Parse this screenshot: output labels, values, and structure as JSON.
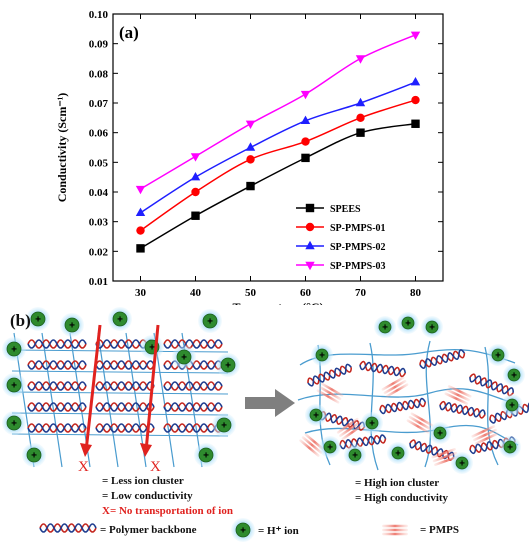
{
  "chart_data": {
    "type": "line",
    "panel_label": "(a)",
    "xlabel": "Temperature (°C)",
    "ylabel": "Conductivity (Scm⁻¹)",
    "x": [
      30,
      40,
      50,
      60,
      70,
      80
    ],
    "xlim": [
      25,
      85
    ],
    "ylim": [
      0.01,
      0.1
    ],
    "x_ticks": [
      "30",
      "40",
      "50",
      "60",
      "70",
      "80"
    ],
    "y_ticks": [
      "0.01",
      "0.02",
      "0.03",
      "0.04",
      "0.05",
      "0.06",
      "0.07",
      "0.08",
      "0.09",
      "0.10"
    ],
    "legend_position": "bottom-right",
    "grid": false,
    "series": [
      {
        "name": "SPEES",
        "color": "#000000",
        "marker": "square",
        "values": [
          0.021,
          0.032,
          0.042,
          0.0515,
          0.06,
          0.063
        ]
      },
      {
        "name": "SP-PMPS-01",
        "color": "#ff0000",
        "marker": "circle",
        "values": [
          0.027,
          0.04,
          0.051,
          0.057,
          0.065,
          0.071
        ]
      },
      {
        "name": "SP-PMPS-02",
        "color": "#1f1fff",
        "marker": "triangle-up",
        "values": [
          0.033,
          0.045,
          0.055,
          0.064,
          0.07,
          0.077
        ]
      },
      {
        "name": "SP-PMPS-03",
        "color": "#ff00ff",
        "marker": "triangle-down",
        "values": [
          0.041,
          0.052,
          0.063,
          0.073,
          0.085,
          0.093
        ]
      }
    ]
  },
  "schematic": {
    "panel_label": "(b)",
    "left": {
      "x_marks": [
        "X",
        "X"
      ],
      "notes": [
        "= Less ion cluster",
        "= Low conductivity",
        "X= No transportation of ion"
      ]
    },
    "right": {
      "notes": [
        "= High ion cluster",
        "= High conductivity"
      ]
    },
    "legend": {
      "polymer": "= Polymer backbone",
      "ion": "= H⁺ ion",
      "pmps": "= PMPS"
    },
    "plus_symbol": "+"
  }
}
